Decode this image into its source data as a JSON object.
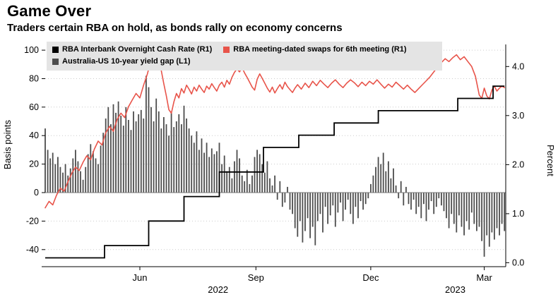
{
  "header": {
    "title": "Game Over",
    "subtitle": "Traders certain RBA on hold, as bonds rally on economy concerns"
  },
  "legend": {
    "items": [
      {
        "label": "RBA Interbank Overnight Cash Rate (R1)",
        "color": "#000000"
      },
      {
        "label": "RBA meeting-dated swaps for 6th meeting (R1)",
        "color": "#e8544a"
      },
      {
        "label": "Australia-US 10-year yield gap (L1)",
        "color": "#4d4d4d"
      }
    ]
  },
  "axes": {
    "left_title": "Basis points",
    "right_title": "Percent",
    "left_ticks": [
      {
        "label": "100",
        "value": 100
      },
      {
        "label": "80",
        "value": 80
      },
      {
        "label": "60",
        "value": 60
      },
      {
        "label": "40",
        "value": 40
      },
      {
        "label": "20",
        "value": 20
      },
      {
        "label": "0",
        "value": 0
      },
      {
        "label": "-20",
        "value": -20
      },
      {
        "label": "-40",
        "value": -40
      }
    ],
    "right_ticks": [
      {
        "label": "4.0",
        "value": 4.0
      },
      {
        "label": "3.0",
        "value": 3.0
      },
      {
        "label": "2.0",
        "value": 2.0
      },
      {
        "label": "1.0",
        "value": 1.0
      },
      {
        "label": "0.0",
        "value": 0.0
      }
    ],
    "x_ticks": [
      {
        "label": "Jun",
        "day": 75
      },
      {
        "label": "Sep",
        "day": 167
      },
      {
        "label": "Dec",
        "day": 258
      },
      {
        "label": "Mar",
        "day": 348
      }
    ],
    "year_labels": [
      {
        "label": "2022",
        "day": 137
      },
      {
        "label": "2023",
        "day": 325
      }
    ]
  },
  "chart_data": {
    "type": "combo",
    "title": "Game Over",
    "subtitle": "Traders certain RBA on hold, as bonds rally on economy concerns",
    "x_axis": "time (Apr 2022 - Mar 2023), day offsets",
    "x_domain_days": [
      0,
      365
    ],
    "ylim_left": [
      -52,
      104
    ],
    "ylim_right": [
      -0.08,
      4.45
    ],
    "left_axis_label": "Basis points",
    "right_axis_label": "Percent",
    "grid": "horizontal dotted at left-axis ticks",
    "legend_position": "top-left inside plot",
    "series": [
      {
        "name": "Australia-US 10-year yield gap (L1)",
        "type": "bar",
        "axis": "left",
        "unit": "basis points",
        "color": "#4d4d4d",
        "start_day": 0,
        "step_days": 2,
        "values": [
          45,
          30,
          24,
          28,
          20,
          25,
          18,
          14,
          20,
          12,
          17,
          24,
          30,
          22,
          15,
          9,
          18,
          27,
          34,
          29,
          24,
          20,
          33,
          42,
          52,
          60,
          48,
          62,
          56,
          64,
          54,
          47,
          60,
          51,
          44,
          57,
          50,
          55,
          58,
          52,
          82,
          74,
          60,
          50,
          66,
          57,
          45,
          53,
          48,
          40,
          56,
          46,
          50,
          55,
          48,
          61,
          52,
          45,
          40,
          35,
          43,
          30,
          38,
          28,
          35,
          25,
          31,
          27,
          29,
          35,
          20,
          26,
          15,
          18,
          10,
          22,
          30,
          24,
          12,
          8,
          16,
          6,
          12,
          25,
          30,
          27,
          20,
          14,
          22,
          10,
          5,
          12,
          -5,
          8,
          -10,
          -7,
          4,
          -12,
          -15,
          -25,
          -31,
          -20,
          -35,
          -27,
          -18,
          -32,
          -24,
          -37,
          -20,
          -15,
          -28,
          -10,
          -22,
          -16,
          -9,
          -24,
          -14,
          -7,
          -20,
          -12,
          -5,
          -15,
          -22,
          -10,
          -18,
          -6,
          -12,
          -8,
          -4,
          6,
          12,
          18,
          25,
          20,
          28,
          15,
          22,
          10,
          17,
          5,
          -4,
          8,
          -9,
          4,
          -8,
          -12,
          -5,
          -15,
          -10,
          -18,
          -8,
          -20,
          -12,
          -6,
          -15,
          -10,
          -4,
          -9,
          -13,
          -18,
          -25,
          -15,
          -22,
          -28,
          -16,
          -24,
          -30,
          -20,
          -26,
          -14,
          -22,
          -27,
          -24,
          -34,
          -45,
          -30,
          -38,
          -28,
          -33,
          -25,
          -30,
          -22,
          -27
        ]
      },
      {
        "name": "RBA meeting-dated swaps for 6th meeting (R1)",
        "type": "line",
        "axis": "right",
        "unit": "percent",
        "color": "#e8544a",
        "points": [
          [
            0,
            1.12
          ],
          [
            3,
            1.25
          ],
          [
            6,
            1.18
          ],
          [
            9,
            1.38
          ],
          [
            12,
            1.52
          ],
          [
            15,
            1.46
          ],
          [
            18,
            1.65
          ],
          [
            21,
            1.82
          ],
          [
            24,
            1.95
          ],
          [
            27,
            1.88
          ],
          [
            30,
            2.05
          ],
          [
            33,
            2.18
          ],
          [
            36,
            2.1
          ],
          [
            39,
            2.32
          ],
          [
            42,
            2.48
          ],
          [
            45,
            2.4
          ],
          [
            48,
            2.65
          ],
          [
            51,
            2.78
          ],
          [
            54,
            2.68
          ],
          [
            57,
            2.92
          ],
          [
            60,
            3.05
          ],
          [
            63,
            2.96
          ],
          [
            66,
            3.18
          ],
          [
            69,
            3.32
          ],
          [
            72,
            3.45
          ],
          [
            75,
            3.36
          ],
          [
            78,
            3.62
          ],
          [
            81,
            3.85
          ],
          [
            84,
            4.15
          ],
          [
            86,
            4.25
          ],
          [
            88,
            4.05
          ],
          [
            90,
            4.18
          ],
          [
            92,
            3.92
          ],
          [
            94,
            3.65
          ],
          [
            96,
            3.4
          ],
          [
            98,
            3.12
          ],
          [
            100,
            3.05
          ],
          [
            102,
            3.28
          ],
          [
            104,
            3.45
          ],
          [
            106,
            3.36
          ],
          [
            108,
            3.55
          ],
          [
            110,
            3.46
          ],
          [
            112,
            3.62
          ],
          [
            114,
            3.54
          ],
          [
            116,
            3.44
          ],
          [
            118,
            3.58
          ],
          [
            120,
            3.5
          ],
          [
            122,
            3.62
          ],
          [
            124,
            3.54
          ],
          [
            126,
            3.47
          ],
          [
            128,
            3.6
          ],
          [
            130,
            3.54
          ],
          [
            132,
            3.65
          ],
          [
            134,
            3.57
          ],
          [
            136,
            3.5
          ],
          [
            138,
            3.62
          ],
          [
            140,
            3.68
          ],
          [
            142,
            3.58
          ],
          [
            144,
            3.72
          ],
          [
            146,
            3.64
          ],
          [
            148,
            3.78
          ],
          [
            150,
            3.88
          ],
          [
            152,
            3.95
          ],
          [
            154,
            3.89
          ],
          [
            156,
            3.98
          ],
          [
            158,
            3.87
          ],
          [
            160,
            3.78
          ],
          [
            162,
            3.68
          ],
          [
            164,
            3.58
          ],
          [
            166,
            3.52
          ],
          [
            168,
            3.74
          ],
          [
            170,
            3.85
          ],
          [
            172,
            3.76
          ],
          [
            174,
            3.66
          ],
          [
            176,
            3.56
          ],
          [
            178,
            3.48
          ],
          [
            180,
            3.58
          ],
          [
            182,
            3.46
          ],
          [
            184,
            3.55
          ],
          [
            186,
            3.63
          ],
          [
            188,
            3.54
          ],
          [
            190,
            3.68
          ],
          [
            192,
            3.59
          ],
          [
            194,
            3.53
          ],
          [
            196,
            3.47
          ],
          [
            198,
            3.56
          ],
          [
            200,
            3.63
          ],
          [
            203,
            3.54
          ],
          [
            206,
            3.66
          ],
          [
            209,
            3.57
          ],
          [
            212,
            3.7
          ],
          [
            215,
            3.61
          ],
          [
            218,
            3.72
          ],
          [
            221,
            3.64
          ],
          [
            224,
            3.57
          ],
          [
            227,
            3.66
          ],
          [
            230,
            3.73
          ],
          [
            233,
            3.64
          ],
          [
            236,
            3.57
          ],
          [
            239,
            3.66
          ],
          [
            242,
            3.73
          ],
          [
            245,
            3.67
          ],
          [
            248,
            3.59
          ],
          [
            251,
            3.68
          ],
          [
            254,
            3.61
          ],
          [
            257,
            3.7
          ],
          [
            260,
            3.64
          ],
          [
            263,
            3.73
          ],
          [
            266,
            3.64
          ],
          [
            269,
            3.56
          ],
          [
            272,
            3.64
          ],
          [
            275,
            3.58
          ],
          [
            278,
            3.68
          ],
          [
            281,
            3.61
          ],
          [
            284,
            3.54
          ],
          [
            287,
            3.62
          ],
          [
            290,
            3.54
          ],
          [
            293,
            3.47
          ],
          [
            296,
            3.55
          ],
          [
            299,
            3.63
          ],
          [
            302,
            3.71
          ],
          [
            305,
            3.79
          ],
          [
            308,
            3.89
          ],
          [
            311,
            3.99
          ],
          [
            314,
            4.08
          ],
          [
            317,
            4.16
          ],
          [
            320,
            4.1
          ],
          [
            323,
            4.18
          ],
          [
            326,
            4.24
          ],
          [
            329,
            4.14
          ],
          [
            332,
            4.2
          ],
          [
            335,
            4.1
          ],
          [
            338,
            4.0
          ],
          [
            341,
            3.8
          ],
          [
            344,
            3.42
          ],
          [
            346,
            3.35
          ],
          [
            348,
            3.56
          ],
          [
            350,
            3.4
          ],
          [
            352,
            3.34
          ],
          [
            354,
            3.52
          ],
          [
            356,
            3.6
          ],
          [
            358,
            3.5
          ],
          [
            360,
            3.56
          ],
          [
            362,
            3.6
          ],
          [
            364,
            3.57
          ]
        ]
      },
      {
        "name": "RBA Interbank Overnight Cash Rate (R1)",
        "type": "step",
        "axis": "right",
        "unit": "percent",
        "color": "#000000",
        "end_day": 364,
        "points": [
          [
            0,
            0.1
          ],
          [
            47,
            0.35
          ],
          [
            82,
            0.85
          ],
          [
            110,
            1.35
          ],
          [
            138,
            1.85
          ],
          [
            173,
            2.35
          ],
          [
            201,
            2.6
          ],
          [
            229,
            2.85
          ],
          [
            264,
            3.1
          ],
          [
            327,
            3.35
          ],
          [
            355,
            3.6
          ]
        ]
      }
    ]
  }
}
